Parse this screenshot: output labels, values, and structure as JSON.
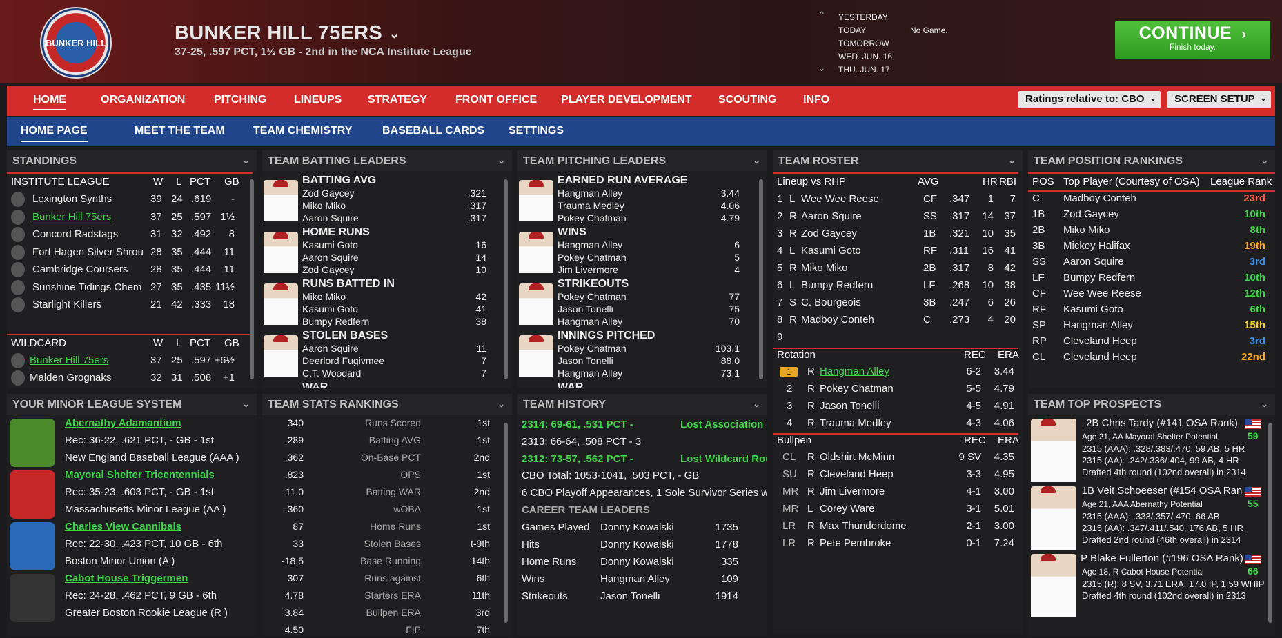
{
  "header": {
    "team": "BUNKER HILL 75ERS",
    "record": "37-25, .597 PCT, 1½ GB - 2nd in the NCA Institute League",
    "logo_text": "BUNKER HILL"
  },
  "schedule": {
    "days": [
      "YESTERDAY",
      "TODAY",
      "TOMORROW",
      "WED. JUN. 16",
      "THU. JUN. 17"
    ],
    "today_result": "No Game."
  },
  "continue": {
    "label": "CONTINUE",
    "sub": "Finish today."
  },
  "nav": {
    "items": [
      "HOME",
      "ORGANIZATION",
      "PITCHING",
      "LINEUPS",
      "STRATEGY",
      "FRONT OFFICE",
      "PLAYER DEVELOPMENT",
      "SCOUTING",
      "INFO"
    ],
    "ratings": "Ratings relative to: CBO",
    "screen_setup": "SCREEN SETUP"
  },
  "subnav": {
    "items": [
      "HOME PAGE",
      "MEET THE TEAM",
      "TEAM CHEMISTRY",
      "BASEBALL CARDS",
      "SETTINGS"
    ]
  },
  "standings": {
    "title": "STANDINGS",
    "league": "INSTITUTE LEAGUE",
    "cols": [
      "W",
      "L",
      "PCT",
      "GB"
    ],
    "rows": [
      [
        "Lexington Synths",
        "39",
        "24",
        ".619",
        "-"
      ],
      [
        "Bunker Hill 75ers",
        "37",
        "25",
        ".597",
        "1½"
      ],
      [
        "Concord Radstags",
        "31",
        "32",
        ".492",
        "8"
      ],
      [
        "Fort Hagen Silver Shrou",
        "28",
        "35",
        ".444",
        "11"
      ],
      [
        "Cambridge Coursers",
        "28",
        "35",
        ".444",
        "11"
      ],
      [
        "Sunshine Tidings Chem",
        "27",
        "35",
        ".435",
        "11½"
      ],
      [
        "Starlight Killers",
        "21",
        "42",
        ".333",
        "18"
      ]
    ],
    "wildcard": "WILDCARD",
    "wc_rows": [
      [
        "Bunker Hill 75ers",
        "37",
        "25",
        ".597",
        "+6½"
      ],
      [
        "Malden Grognaks",
        "32",
        "31",
        ".508",
        "+1"
      ]
    ]
  },
  "batting": {
    "title": "TEAM BATTING LEADERS",
    "groups": [
      {
        "cat": "BATTING AVG",
        "rows": [
          [
            "Zod Gaycey",
            ".321"
          ],
          [
            "Miko Miko",
            ".317"
          ],
          [
            "Aaron Squire",
            ".317"
          ]
        ]
      },
      {
        "cat": "HOME RUNS",
        "rows": [
          [
            "Kasumi Goto",
            "16"
          ],
          [
            "Aaron Squire",
            "14"
          ],
          [
            "Zod Gaycey",
            "10"
          ]
        ]
      },
      {
        "cat": "RUNS BATTED IN",
        "rows": [
          [
            "Miko Miko",
            "42"
          ],
          [
            "Kasumi Goto",
            "41"
          ],
          [
            "Bumpy Redfern",
            "38"
          ]
        ]
      },
      {
        "cat": "STOLEN BASES",
        "rows": [
          [
            "Aaron Squire",
            "11"
          ],
          [
            "Deerlord Fugivmee",
            "7"
          ],
          [
            "C.T. Woodard",
            "7"
          ]
        ]
      }
    ],
    "more": "WAR"
  },
  "pitching": {
    "title": "TEAM PITCHING LEADERS",
    "groups": [
      {
        "cat": "EARNED RUN AVERAGE",
        "rows": [
          [
            "Hangman Alley",
            "3.44"
          ],
          [
            "Trauma Medley",
            "4.06"
          ],
          [
            "Pokey Chatman",
            "4.79"
          ]
        ]
      },
      {
        "cat": "WINS",
        "rows": [
          [
            "Hangman Alley",
            "6"
          ],
          [
            "Pokey Chatman",
            "5"
          ],
          [
            "Jim Livermore",
            "4"
          ]
        ]
      },
      {
        "cat": "STRIKEOUTS",
        "rows": [
          [
            "Pokey Chatman",
            "77"
          ],
          [
            "Jason Tonelli",
            "75"
          ],
          [
            "Hangman Alley",
            "70"
          ]
        ]
      },
      {
        "cat": "INNINGS PITCHED",
        "rows": [
          [
            "Pokey Chatman",
            "103.1"
          ],
          [
            "Jason Tonelli",
            "88.0"
          ],
          [
            "Hangman Alley",
            "73.1"
          ]
        ]
      }
    ],
    "more": "WAR"
  },
  "roster": {
    "title": "TEAM ROSTER",
    "lineup_hdr": "Lineup vs RHP",
    "cols": [
      "AVG",
      "HR",
      "RBI"
    ],
    "lineup": [
      [
        "1",
        "L",
        "Wee Wee Reese",
        "CF",
        ".347",
        "1",
        "7"
      ],
      [
        "2",
        "R",
        "Aaron Squire",
        "SS",
        ".317",
        "14",
        "37"
      ],
      [
        "3",
        "R",
        "Zod Gaycey",
        "1B",
        ".321",
        "10",
        "35"
      ],
      [
        "4",
        "L",
        "Kasumi Goto",
        "RF",
        ".311",
        "16",
        "41"
      ],
      [
        "5",
        "R",
        "Miko Miko",
        "2B",
        ".317",
        "8",
        "42"
      ],
      [
        "6",
        "L",
        "Bumpy Redfern",
        "LF",
        ".268",
        "10",
        "38"
      ],
      [
        "7",
        "S",
        "C. Bourgeois",
        "3B",
        ".247",
        "6",
        "26"
      ],
      [
        "8",
        "R",
        "Madboy Conteh",
        "C",
        ".273",
        "4",
        "20"
      ],
      [
        "9",
        "",
        "",
        "",
        "",
        "",
        ""
      ]
    ],
    "rot_hdr": "Rotation",
    "rot_cols": [
      "REC",
      "ERA"
    ],
    "rotation": [
      [
        "1",
        "R",
        "Hangman Alley",
        "6-2",
        "3.44"
      ],
      [
        "2",
        "R",
        "Pokey Chatman",
        "5-5",
        "4.79"
      ],
      [
        "3",
        "R",
        "Jason Tonelli",
        "4-5",
        "4.91"
      ],
      [
        "4",
        "R",
        "Trauma Medley",
        "4-3",
        "4.06"
      ]
    ],
    "pen_hdr": "Bullpen",
    "bullpen": [
      [
        "CL",
        "R",
        "Oldshirt McMinn",
        "9 SV",
        "4.35"
      ],
      [
        "SU",
        "R",
        "Cleveland Heep",
        "3-3",
        "4.95"
      ],
      [
        "MR",
        "R",
        "Jim Livermore",
        "4-1",
        "3.00"
      ],
      [
        "MR",
        "L",
        "Corey Ware",
        "3-1",
        "5.01"
      ],
      [
        "LR",
        "R",
        "Max Thunderdome",
        "2-1",
        "3.00"
      ],
      [
        "LR",
        "R",
        "Pete Pembroke",
        "0-1",
        "7.24"
      ]
    ]
  },
  "positions": {
    "title": "TEAM POSITION RANKINGS",
    "cols": [
      "POS",
      "Top Player (Courtesy of OSA)",
      "League Rank"
    ],
    "rows": [
      [
        "C",
        "Madboy Conteh",
        "23rd",
        "#ff5a4a"
      ],
      [
        "1B",
        "Zod Gaycey",
        "10th",
        "#3fd44a"
      ],
      [
        "2B",
        "Miko Miko",
        "8th",
        "#3fd44a"
      ],
      [
        "3B",
        "Mickey Halifax",
        "19th",
        "#f5a623"
      ],
      [
        "SS",
        "Aaron Squire",
        "3rd",
        "#3a8ee6"
      ],
      [
        "LF",
        "Bumpy Redfern",
        "10th",
        "#3fd44a"
      ],
      [
        "CF",
        "Wee Wee Reese",
        "12th",
        "#3fd44a"
      ],
      [
        "RF",
        "Kasumi Goto",
        "6th",
        "#3fd44a"
      ],
      [
        "SP",
        "Hangman Alley",
        "15th",
        "#f5d623"
      ],
      [
        "RP",
        "Cleveland Heep",
        "3rd",
        "#3a8ee6"
      ],
      [
        "CL",
        "Cleveland Heep",
        "22nd",
        "#f5a623"
      ]
    ]
  },
  "minors": {
    "title": "YOUR MINOR LEAGUE SYSTEM",
    "teams": [
      {
        "name": "Abernathy Adamantium",
        "rec": "Rec: 36-22, .621 PCT, - GB - 1st",
        "league": "New England Baseball League (AAA )"
      },
      {
        "name": "Mayoral Shelter Tricentennials",
        "rec": "Rec: 35-23, .603 PCT, - GB - 1st",
        "league": "Massachusetts Minor League (AA )"
      },
      {
        "name": "Charles View Cannibals",
        "rec": "Rec: 22-30, .423 PCT, 10 GB - 6th",
        "league": "Boston Minor Union (A )"
      },
      {
        "name": "Cabot House Triggermen",
        "rec": "Rec: 24-28, .462 PCT, 9 GB - 6th",
        "league": "Greater Boston Rookie League (R )"
      }
    ]
  },
  "stats": {
    "title": "TEAM STATS RANKINGS",
    "rows": [
      [
        "340",
        "Runs Scored",
        "1st"
      ],
      [
        ".289",
        "Batting AVG",
        "1st"
      ],
      [
        ".362",
        "On-Base PCT",
        "2nd"
      ],
      [
        ".823",
        "OPS",
        "1st"
      ],
      [
        "11.0",
        "Batting WAR",
        "2nd"
      ],
      [
        ".360",
        "wOBA",
        "1st"
      ],
      [
        "87",
        "Home Runs",
        "1st"
      ],
      [
        "33",
        "Stolen Bases",
        "t-9th"
      ],
      [
        "-18.5",
        "Base Running",
        "14th"
      ],
      [
        "307",
        "Runs against",
        "6th"
      ],
      [
        "4.78",
        "Starters ERA",
        "11th"
      ],
      [
        "3.84",
        "Bullpen ERA",
        "3rd"
      ],
      [
        "4.50",
        "FIP",
        "7th"
      ]
    ]
  },
  "history": {
    "title": "TEAM HISTORY",
    "lines": [
      {
        "a": "2314: 69-61, .531 PCT - ",
        "b": "Lost Association S",
        "green": true
      },
      {
        "a": "2313: 66-64, .508 PCT - 3",
        "b": "",
        "green": false
      },
      {
        "a": "2312: 73-57, .562 PCT - ",
        "b": "Lost Wildcard Rou",
        "green": true
      }
    ],
    "total": "CBO Total: 1053-1041, .503 PCT, - GB",
    "playoffs": "6 CBO Playoff Appearances, 1 Sole Survivor Series w",
    "career_hdr": "CAREER TEAM LEADERS",
    "career": [
      [
        "Games Played",
        "Donny Kowalski",
        "1735"
      ],
      [
        "Hits",
        "Donny Kowalski",
        "1778"
      ],
      [
        "Home Runs",
        "Donny Kowalski",
        "335"
      ],
      [
        "Wins",
        "Hangman Alley",
        "109"
      ],
      [
        "Strikeouts",
        "Jason Tonelli",
        "1914"
      ]
    ]
  },
  "prospects": {
    "title": "TEAM TOP PROSPECTS",
    "items": [
      {
        "head": "2B Chris Tardy (#141 OSA Rank)",
        "age": "Age 21, AA Mayoral Shelter Potential",
        "pot": "59",
        "l1": "2315 (AAA): .328/.383/.470, 59 AB, 5 HR",
        "l2": "2315 (AA): .242/.336/.404, 99 AB, 4 HR",
        "l3": "Drafted 4th round (102nd overall) in 2314"
      },
      {
        "head": "1B Veit Schoeeser (#154 OSA Ran",
        "age": "Age 21, AAA Abernathy       Potential",
        "pot": "55",
        "l1": "2315 (AAA): .333/.357/.470, 66 AB",
        "l2": "2315 (AA): .347/.411/.540, 176 AB, 5 HR",
        "l3": "Drafted 2nd round (46th overall) in 2314"
      },
      {
        "head": "P Blake Fullerton (#196 OSA Rank)",
        "age": "Age 18, R Cabot House        Potential",
        "pot": "66",
        "l1": "2315 (R): 8 SV, 3.71 ERA, 17.0 IP, 1.59 WHIP",
        "l2": "Drafted 4th round (102nd overall) in 2313",
        "l3": ""
      }
    ]
  },
  "colors": {
    "nav_red": "#d42b2b",
    "nav_blue": "#21458a",
    "green": "#3fd44a",
    "continue": "#3aa82a"
  }
}
